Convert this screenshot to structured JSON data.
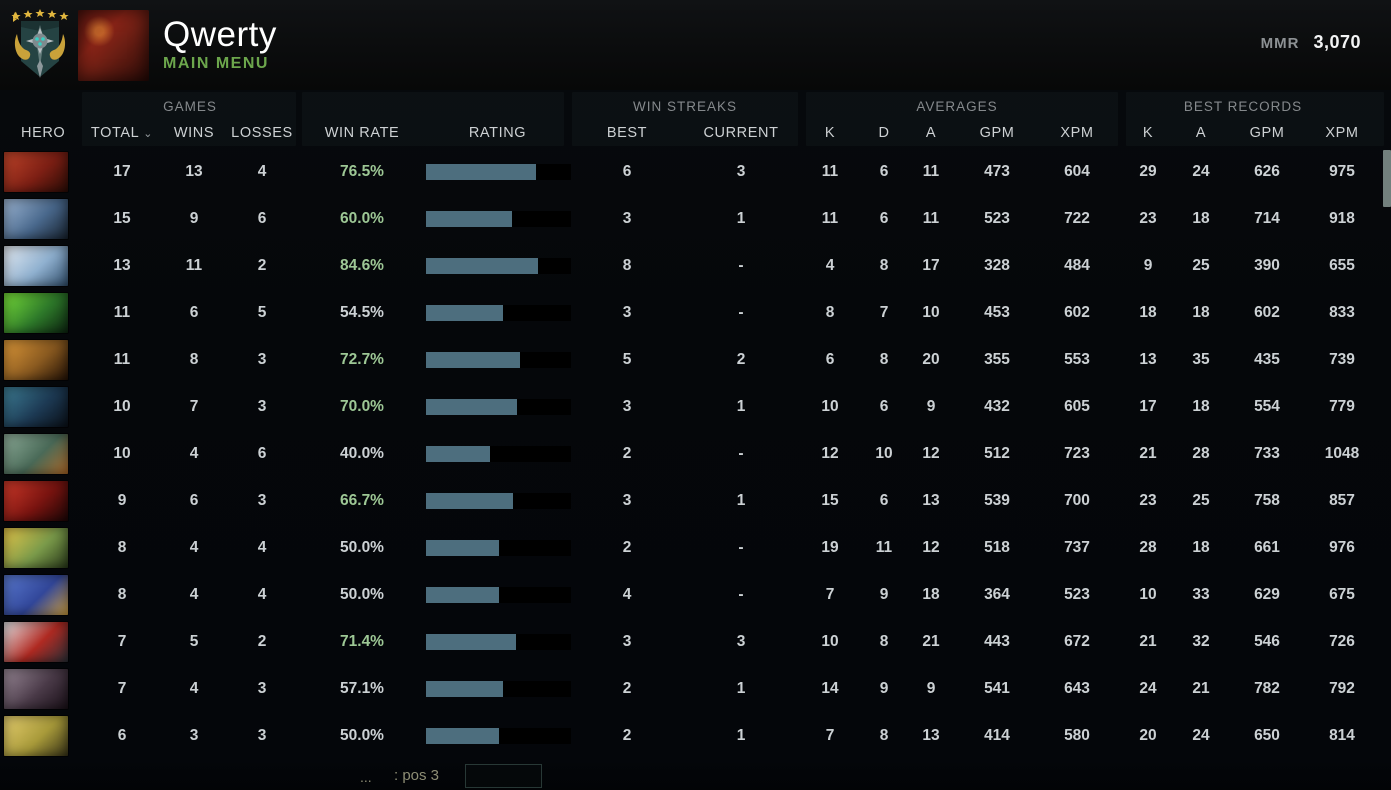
{
  "header": {
    "player_name": "Qwerty",
    "menu_label": "MAIN MENU",
    "mmr_label": "MMR",
    "mmr_value": "3,070",
    "rank_stars": 5
  },
  "table": {
    "groups": {
      "games": "GAMES",
      "win_streaks": "WIN STREAKS",
      "averages": "AVERAGES",
      "best_records": "BEST RECORDS"
    },
    "columns": {
      "hero": "HERO",
      "total": "TOTAL",
      "wins": "WINS",
      "losses": "LOSSES",
      "win_rate": "WIN RATE",
      "rating": "RATING",
      "best": "BEST",
      "current": "CURRENT",
      "k": "K",
      "d": "D",
      "a": "A",
      "gpm": "GPM",
      "xpm": "XPM",
      "rk": "K",
      "ra": "A",
      "rgpm": "GPM",
      "rxpm": "XPM"
    },
    "sort_indicator": "⌄",
    "rows": [
      {
        "total": 17,
        "wins": 13,
        "losses": 4,
        "win_rate": "76.5%",
        "highlight": true,
        "rating_pct": 76,
        "streak_best": "6",
        "streak_current": "3",
        "k": 11,
        "d": 6,
        "a": 11,
        "gpm": 473,
        "xpm": 604,
        "rk": 29,
        "ra": 24,
        "rgpm": 626,
        "rxpm": 975,
        "portrait": [
          "#c1452a",
          "#7d1f14",
          "#2a0c06"
        ]
      },
      {
        "total": 15,
        "wins": 9,
        "losses": 6,
        "win_rate": "60.0%",
        "highlight": true,
        "rating_pct": 59,
        "streak_best": "3",
        "streak_current": "1",
        "k": 11,
        "d": 6,
        "a": 11,
        "gpm": 523,
        "xpm": 722,
        "rk": 23,
        "ra": 18,
        "rgpm": 714,
        "rxpm": 918,
        "portrait": [
          "#9fb8d6",
          "#49688c",
          "#17222e"
        ]
      },
      {
        "total": 13,
        "wins": 11,
        "losses": 2,
        "win_rate": "84.6%",
        "highlight": true,
        "rating_pct": 77,
        "streak_best": "8",
        "streak_current": "-",
        "k": 4,
        "d": 8,
        "a": 17,
        "gpm": 328,
        "xpm": 484,
        "rk": 9,
        "ra": 25,
        "rgpm": 390,
        "rxpm": 655,
        "portrait": [
          "#e8eef5",
          "#8fb0cf",
          "#32506e"
        ]
      },
      {
        "total": 11,
        "wins": 6,
        "losses": 5,
        "win_rate": "54.5%",
        "highlight": false,
        "rating_pct": 53,
        "streak_best": "3",
        "streak_current": "-",
        "k": 8,
        "d": 7,
        "a": 10,
        "gpm": 453,
        "xpm": 602,
        "rk": 18,
        "ra": 18,
        "rgpm": 602,
        "rxpm": 833,
        "portrait": [
          "#79e03a",
          "#2e7a2a",
          "#0c2410"
        ]
      },
      {
        "total": 11,
        "wins": 8,
        "losses": 3,
        "win_rate": "72.7%",
        "highlight": true,
        "rating_pct": 65,
        "streak_best": "5",
        "streak_current": "2",
        "k": 6,
        "d": 8,
        "a": 20,
        "gpm": 355,
        "xpm": 553,
        "rk": 13,
        "ra": 35,
        "rgpm": 435,
        "rxpm": 739,
        "portrait": [
          "#e09a3a",
          "#8a5a20",
          "#241206"
        ]
      },
      {
        "total": 10,
        "wins": 7,
        "losses": 3,
        "win_rate": "70.0%",
        "highlight": true,
        "rating_pct": 63,
        "streak_best": "3",
        "streak_current": "1",
        "k": 10,
        "d": 6,
        "a": 9,
        "gpm": 432,
        "xpm": 605,
        "rk": 17,
        "ra": 18,
        "rgpm": 554,
        "rxpm": 779,
        "portrait": [
          "#3e7f96",
          "#1d3a54",
          "#0a1018"
        ]
      },
      {
        "total": 10,
        "wins": 4,
        "losses": 6,
        "win_rate": "40.0%",
        "highlight": false,
        "rating_pct": 44,
        "streak_best": "2",
        "streak_current": "-",
        "k": 12,
        "d": 10,
        "a": 12,
        "gpm": 512,
        "xpm": 723,
        "rk": 21,
        "ra": 28,
        "rgpm": 733,
        "rxpm": 1048,
        "portrait": [
          "#8fae9a",
          "#4a6a58",
          "#b06a28"
        ]
      },
      {
        "total": 9,
        "wins": 6,
        "losses": 3,
        "win_rate": "66.7%",
        "highlight": true,
        "rating_pct": 60,
        "streak_best": "3",
        "streak_current": "1",
        "k": 15,
        "d": 6,
        "a": 13,
        "gpm": 539,
        "xpm": 700,
        "rk": 23,
        "ra": 25,
        "rgpm": 758,
        "rxpm": 857,
        "portrait": [
          "#d03a2a",
          "#7a1410",
          "#1c0606"
        ]
      },
      {
        "total": 8,
        "wins": 4,
        "losses": 4,
        "win_rate": "50.0%",
        "highlight": false,
        "rating_pct": 50,
        "streak_best": "2",
        "streak_current": "-",
        "k": 19,
        "d": 11,
        "a": 12,
        "gpm": 518,
        "xpm": 737,
        "rk": 28,
        "ra": 18,
        "rgpm": 661,
        "rxpm": 976,
        "portrait": [
          "#e8c84a",
          "#7a9a4a",
          "#2a3a1a"
        ]
      },
      {
        "total": 8,
        "wins": 4,
        "losses": 4,
        "win_rate": "50.0%",
        "highlight": false,
        "rating_pct": 50,
        "streak_best": "4",
        "streak_current": "-",
        "k": 7,
        "d": 9,
        "a": 18,
        "gpm": 364,
        "xpm": 523,
        "rk": 10,
        "ra": 33,
        "rgpm": 629,
        "rxpm": 675,
        "portrait": [
          "#5a7ad0",
          "#32479a",
          "#d0a040"
        ]
      },
      {
        "total": 7,
        "wins": 5,
        "losses": 2,
        "win_rate": "71.4%",
        "highlight": true,
        "rating_pct": 62,
        "streak_best": "3",
        "streak_current": "3",
        "k": 10,
        "d": 8,
        "a": 21,
        "gpm": 443,
        "xpm": 672,
        "rk": 21,
        "ra": 32,
        "rgpm": 546,
        "rxpm": 726,
        "portrait": [
          "#e8e8ea",
          "#b02a22",
          "#2a3038"
        ]
      },
      {
        "total": 7,
        "wins": 4,
        "losses": 3,
        "win_rate": "57.1%",
        "highlight": false,
        "rating_pct": 53,
        "streak_best": "2",
        "streak_current": "1",
        "k": 14,
        "d": 9,
        "a": 9,
        "gpm": 541,
        "xpm": 643,
        "rk": 24,
        "ra": 21,
        "rgpm": 782,
        "rxpm": 792,
        "portrait": [
          "#9a8a98",
          "#4a3a48",
          "#1a1018"
        ]
      },
      {
        "total": 6,
        "wins": 3,
        "losses": 3,
        "win_rate": "50.0%",
        "highlight": false,
        "rating_pct": 50,
        "streak_best": "2",
        "streak_current": "1",
        "k": 7,
        "d": 8,
        "a": 13,
        "gpm": 414,
        "xpm": 580,
        "rk": 20,
        "ra": 24,
        "rgpm": 650,
        "rxpm": 814,
        "portrait": [
          "#e8d070",
          "#a89a3a",
          "#3a3518"
        ]
      }
    ]
  },
  "footer": {
    "ellipsis": "...",
    "pos_label": ": pos 3"
  },
  "colors": {
    "accent_green": "#9dc795",
    "menu_green": "#6ca64c",
    "bar_fill": "#4d6e7e",
    "bar_track": "#000000",
    "mmr_white": "#f2f3f4"
  }
}
